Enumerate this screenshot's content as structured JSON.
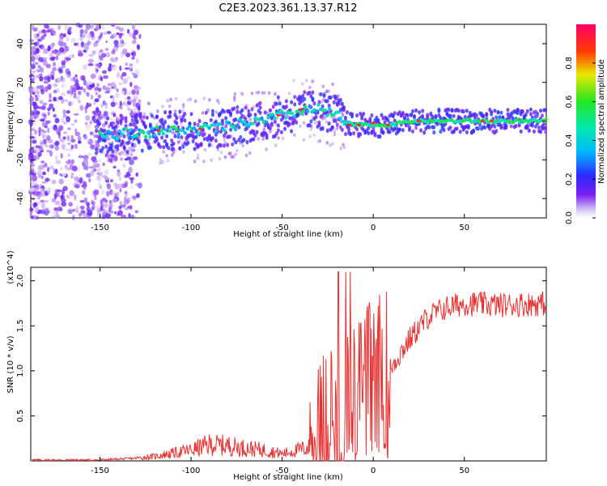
{
  "title": "C2E3.2023.361.13.37.R12",
  "chart_data": [
    {
      "type": "heatmap",
      "name": "spectrogram",
      "xlabel": "Height of straight line (km)",
      "ylabel": "Frequency (Hz)",
      "xlim": [
        -188,
        95
      ],
      "ylim": [
        -50,
        50
      ],
      "xticks": [
        -150,
        -100,
        -50,
        0,
        50
      ],
      "yticks": [
        -40,
        -20,
        0,
        20,
        40
      ],
      "colorbar": {
        "label": "Normalized spectral amplitude",
        "range": [
          0,
          1
        ],
        "ticks": [
          "0.0",
          "0.2",
          "0.4",
          "0.6",
          "0.8"
        ],
        "tick_values": [
          0.0,
          0.2,
          0.4,
          0.6,
          0.8
        ]
      },
      "ridge": {
        "x": [
          -150,
          -130,
          -110,
          -90,
          -80,
          -70,
          -60,
          -50,
          -40,
          -30,
          -20,
          -15,
          -10,
          0,
          10,
          20,
          50,
          95
        ],
        "y": [
          -7,
          -6,
          -5,
          -4,
          -3,
          -1,
          0,
          3,
          5,
          6,
          3,
          -1,
          -2,
          -2,
          -2,
          0,
          0,
          0
        ]
      }
    },
    {
      "type": "line",
      "name": "snr",
      "xlabel": "Height of straight line (km)",
      "ylabel": "SNR (10 * v/v)",
      "scale_note": "(x10^4)",
      "xlim": [
        -188,
        95
      ],
      "ylim": [
        0,
        2.15
      ],
      "xticks": [
        -150,
        -100,
        -50,
        0,
        50
      ],
      "yticks": [
        0.5,
        1.0,
        1.5,
        2.0
      ],
      "ytick_labels": [
        "0.5",
        "1.0",
        "1.5",
        "2.0"
      ],
      "color": "#e83030",
      "trend": {
        "x": [
          -188,
          -150,
          -130,
          -120,
          -100,
          -90,
          -80,
          -70,
          -60,
          -50,
          -35,
          -30,
          -20,
          -10,
          -5,
          0,
          10,
          20,
          30,
          40,
          50,
          70,
          95
        ],
        "y": [
          0.01,
          0.01,
          0.03,
          0.05,
          0.12,
          0.18,
          0.17,
          0.14,
          0.12,
          0.08,
          0.15,
          0.25,
          0.55,
          0.75,
          0.85,
          0.95,
          1.05,
          1.35,
          1.6,
          1.7,
          1.75,
          1.73,
          1.75
        ]
      }
    }
  ]
}
